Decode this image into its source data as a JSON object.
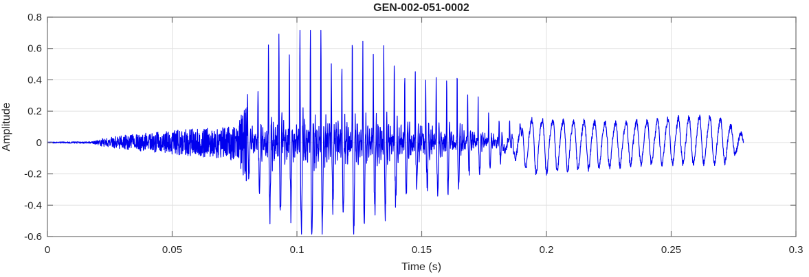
{
  "chart_data": {
    "type": "line",
    "title": "GEN-002-051-0002",
    "xlabel": "Time (s)",
    "ylabel": "Amplitude",
    "xlim": [
      0,
      0.3
    ],
    "ylim": [
      -0.6,
      0.8
    ],
    "xticks": [
      0,
      0.05,
      0.1,
      0.15,
      0.2,
      0.25,
      0.3
    ],
    "xtick_labels": [
      "0",
      "0.05",
      "0.1",
      "0.15",
      "0.2",
      "0.25",
      "0.3"
    ],
    "yticks": [
      -0.6,
      -0.4,
      -0.2,
      0,
      0.2,
      0.4,
      0.6,
      0.8
    ],
    "ytick_labels": [
      "-0.6",
      "-0.4",
      "-0.2",
      "0",
      "0.2",
      "0.4",
      "0.6",
      "0.8"
    ],
    "grid": true,
    "legend": null,
    "line_color": "#0000EE",
    "axis_color": "#6E6E6E",
    "grid_color": "#E0E0E0",
    "text_color": "#262626",
    "signal": {
      "description": "speech-like waveform: silence, breathy noise ramp, strong glottal pulse burst, decaying sinusoidal tail",
      "t_end_s": 0.279,
      "silence_end_s": 0.019,
      "noise_end_s": 0.08,
      "burst_end_s": 0.186,
      "pulse_rate_hz": 238,
      "tail_freq_hz": 238,
      "peak_amplitude": 0.7,
      "min_amplitude": -0.57,
      "envelope_pos": [
        [
          0.0,
          0.004
        ],
        [
          0.018,
          0.006
        ],
        [
          0.022,
          0.025
        ],
        [
          0.03,
          0.045
        ],
        [
          0.04,
          0.06
        ],
        [
          0.05,
          0.075
        ],
        [
          0.06,
          0.09
        ],
        [
          0.07,
          0.1
        ],
        [
          0.076,
          0.12
        ],
        [
          0.08,
          0.3
        ],
        [
          0.085,
          0.5
        ],
        [
          0.09,
          0.66
        ],
        [
          0.095,
          0.7
        ],
        [
          0.1,
          0.68
        ],
        [
          0.105,
          0.65
        ],
        [
          0.11,
          0.64
        ],
        [
          0.115,
          0.62
        ],
        [
          0.12,
          0.6
        ],
        [
          0.125,
          0.58
        ],
        [
          0.13,
          0.56
        ],
        [
          0.135,
          0.55
        ],
        [
          0.14,
          0.5
        ],
        [
          0.145,
          0.52
        ],
        [
          0.15,
          0.49
        ],
        [
          0.155,
          0.46
        ],
        [
          0.16,
          0.42
        ],
        [
          0.165,
          0.36
        ],
        [
          0.17,
          0.32
        ],
        [
          0.175,
          0.26
        ],
        [
          0.18,
          0.21
        ],
        [
          0.186,
          0.17
        ],
        [
          0.195,
          0.155
        ],
        [
          0.21,
          0.15
        ],
        [
          0.225,
          0.135
        ],
        [
          0.24,
          0.15
        ],
        [
          0.255,
          0.17
        ],
        [
          0.265,
          0.185
        ],
        [
          0.272,
          0.15
        ],
        [
          0.276,
          0.08
        ],
        [
          0.279,
          0.05
        ]
      ],
      "envelope_neg": [
        [
          0.0,
          0.004
        ],
        [
          0.018,
          0.006
        ],
        [
          0.022,
          0.025
        ],
        [
          0.03,
          0.045
        ],
        [
          0.04,
          0.06
        ],
        [
          0.05,
          0.075
        ],
        [
          0.06,
          0.09
        ],
        [
          0.07,
          0.1
        ],
        [
          0.076,
          0.12
        ],
        [
          0.08,
          0.22
        ],
        [
          0.085,
          0.38
        ],
        [
          0.09,
          0.48
        ],
        [
          0.095,
          0.54
        ],
        [
          0.1,
          0.57
        ],
        [
          0.105,
          0.56
        ],
        [
          0.11,
          0.55
        ],
        [
          0.115,
          0.53
        ],
        [
          0.12,
          0.55
        ],
        [
          0.125,
          0.52
        ],
        [
          0.13,
          0.47
        ],
        [
          0.135,
          0.44
        ],
        [
          0.14,
          0.42
        ],
        [
          0.145,
          0.4
        ],
        [
          0.15,
          0.37
        ],
        [
          0.155,
          0.35
        ],
        [
          0.16,
          0.32
        ],
        [
          0.165,
          0.28
        ],
        [
          0.17,
          0.25
        ],
        [
          0.175,
          0.22
        ],
        [
          0.18,
          0.2
        ],
        [
          0.186,
          0.2
        ],
        [
          0.195,
          0.19
        ],
        [
          0.21,
          0.17
        ],
        [
          0.225,
          0.145
        ],
        [
          0.24,
          0.13
        ],
        [
          0.255,
          0.125
        ],
        [
          0.265,
          0.13
        ],
        [
          0.272,
          0.12
        ],
        [
          0.276,
          0.07
        ],
        [
          0.279,
          0.04
        ]
      ]
    }
  }
}
